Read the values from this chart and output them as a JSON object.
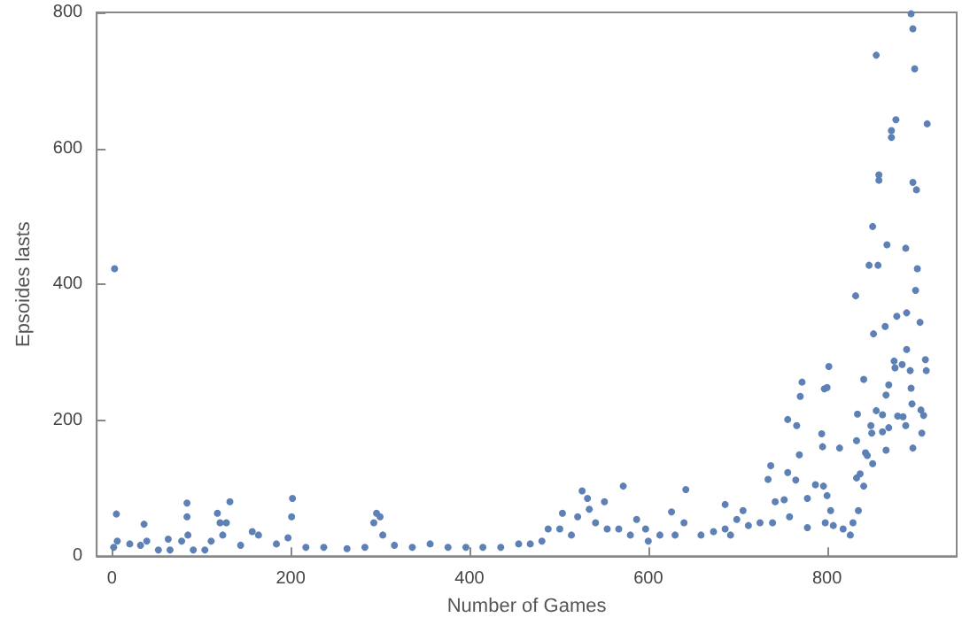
{
  "chart_data": {
    "type": "scatter",
    "xlabel": "Number of Games",
    "ylabel": "Epsoides lasts",
    "xlim": [
      -17,
      945
    ],
    "ylim": [
      0,
      800
    ],
    "xticks": [
      0,
      200,
      400,
      600,
      800
    ],
    "yticks": [
      0,
      200,
      400,
      600,
      800
    ],
    "grid": false,
    "marker": "circle",
    "series": [
      {
        "color": "#5e81b5",
        "x": [
          2,
          3,
          5,
          6,
          20,
          32,
          36,
          39,
          52,
          63,
          65,
          78,
          84,
          84,
          85,
          91,
          104,
          111,
          118,
          121,
          124,
          128,
          132,
          144,
          157,
          164,
          184,
          197,
          201,
          202,
          217,
          237,
          263,
          283,
          293,
          296,
          300,
          303,
          316,
          336,
          356,
          376,
          396,
          415,
          435,
          455,
          468,
          481,
          488,
          501,
          504,
          514,
          521,
          526,
          532,
          534,
          541,
          551,
          554,
          567,
          572,
          580,
          587,
          597,
          600,
          613,
          626,
          630,
          640,
          642,
          659,
          673,
          686,
          686,
          692,
          699,
          706,
          712,
          725,
          734,
          737,
          739,
          742,
          752,
          756,
          756,
          758,
          765,
          766,
          769,
          770,
          772,
          778,
          778,
          787,
          794,
          795,
          796,
          797,
          798,
          800,
          800,
          802,
          804,
          807,
          814,
          818,
          826,
          829,
          832,
          833,
          833,
          834,
          835,
          837,
          841,
          841,
          843,
          845,
          847,
          849,
          850,
          851,
          851,
          852,
          855,
          855,
          857,
          858,
          858,
          862,
          862,
          865,
          866,
          866,
          867,
          869,
          869,
          872,
          872,
          875,
          876,
          877,
          878,
          879,
          884,
          885,
          888,
          888,
          889,
          889,
          893,
          894,
          894,
          895,
          896,
          896,
          896,
          898,
          899,
          900,
          901,
          904,
          905,
          906,
          908,
          910,
          911,
          912
        ],
        "values": [
          13,
          423,
          62,
          22,
          18,
          16,
          47,
          22,
          9,
          25,
          9,
          22,
          78,
          58,
          31,
          9,
          9,
          22,
          63,
          49,
          31,
          49,
          80,
          16,
          36,
          31,
          18,
          27,
          58,
          85,
          13,
          13,
          11,
          13,
          49,
          63,
          58,
          31,
          16,
          13,
          18,
          13,
          13,
          13,
          13,
          18,
          18,
          22,
          40,
          40,
          63,
          31,
          58,
          96,
          85,
          69,
          49,
          80,
          40,
          40,
          103,
          31,
          54,
          40,
          22,
          31,
          65,
          31,
          49,
          98,
          31,
          36,
          40,
          76,
          31,
          54,
          67,
          45,
          49,
          113,
          133,
          49,
          80,
          83,
          123,
          201,
          58,
          112,
          192,
          149,
          235,
          256,
          42,
          85,
          105,
          180,
          161,
          103,
          246,
          49,
          89,
          248,
          279,
          67,
          45,
          159,
          40,
          31,
          49,
          383,
          170,
          115,
          209,
          67,
          121,
          103,
          260,
          152,
          148,
          428,
          192,
          181,
          136,
          485,
          327,
          214,
          737,
          428,
          561,
          553,
          208,
          183,
          338,
          156,
          237,
          458,
          189,
          252,
          626,
          616,
          287,
          277,
          642,
          353,
          206,
          282,
          205,
          453,
          192,
          304,
          358,
          273,
          247,
          798,
          224,
          776,
          159,
          550,
          717,
          391,
          539,
          423,
          344,
          215,
          181,
          207,
          289,
          273,
          636
        ]
      }
    ]
  }
}
